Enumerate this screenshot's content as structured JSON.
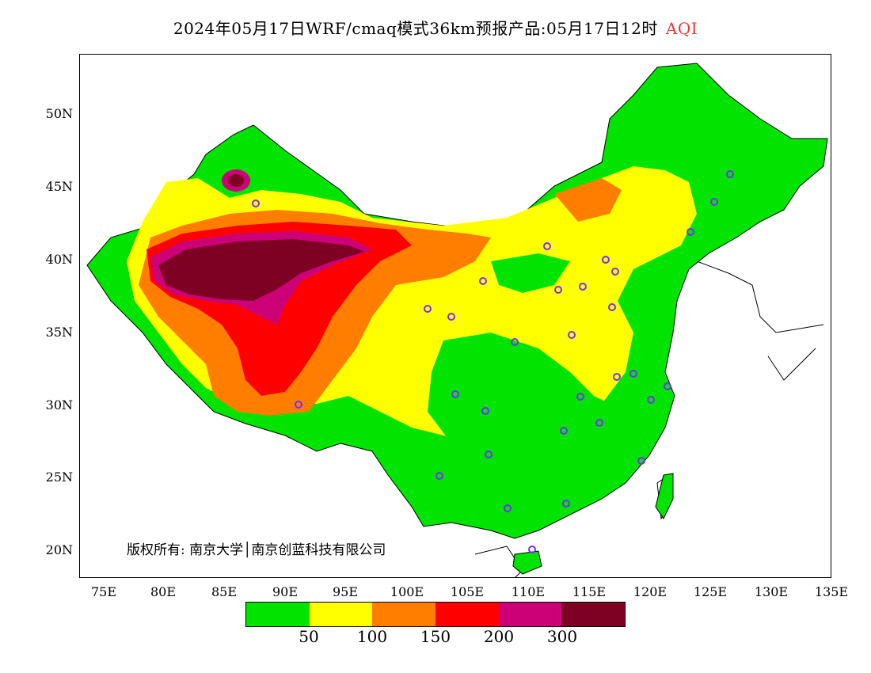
{
  "title": {
    "text": "2024年05月17日WRF/cmaq模式36km预报产品:05月17日12时",
    "variable": "AQI",
    "variable_color": "#e8383a"
  },
  "y_axis": {
    "ticks": [
      "50N",
      "45N",
      "40N",
      "35N",
      "30N",
      "25N",
      "20N"
    ]
  },
  "x_axis": {
    "ticks": [
      "75E",
      "80E",
      "85E",
      "90E",
      "95E",
      "100E",
      "105E",
      "110E",
      "115E",
      "120E",
      "125E",
      "130E",
      "135E"
    ]
  },
  "copyright": "版权所有: 南京大学│南京创蓝科技有限公司",
  "legend": {
    "colors": [
      "#00e400",
      "#ffff00",
      "#ff7e00",
      "#ff0000",
      "#cc0077",
      "#7e0023"
    ],
    "labels": [
      "50",
      "100",
      "150",
      "200",
      "300"
    ]
  },
  "map_colors": {
    "good": "#00e400",
    "moderate": "#ffff00",
    "usg": "#ff7e00",
    "unhealthy": "#ff0000",
    "very_unhealthy": "#cc0077",
    "hazardous": "#7e0023",
    "station_marker": "#7a2cff"
  }
}
